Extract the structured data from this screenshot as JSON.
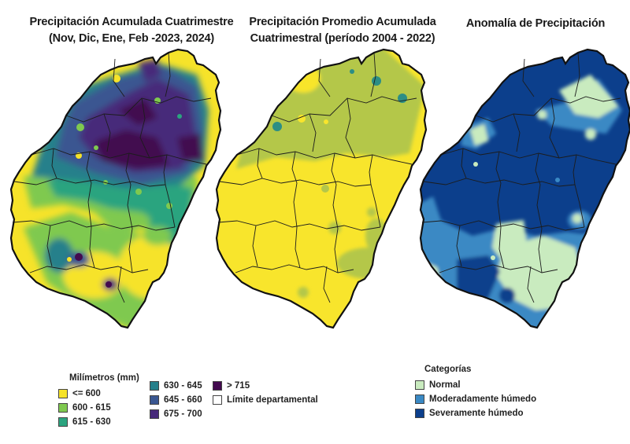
{
  "titles": {
    "panel1": "Precipitación Acumulada Cuatrimestre (Nov, Dic, Ene, Feb -2023, 2024)",
    "panel2": "Precipitación Promedio Acumulada Cuatrimestral (período 2004 - 2022)",
    "panel3": "Anomalía de Precipitación"
  },
  "legend_mm": {
    "title": "Milímetros (mm)",
    "items": [
      {
        "label": "<= 600",
        "color": "#f6e32a"
      },
      {
        "label": "600 - 615",
        "color": "#7fc94f"
      },
      {
        "label": "615 - 630",
        "color": "#2ba47f"
      },
      {
        "label": "630 - 645",
        "color": "#26808b"
      },
      {
        "label": "645 - 660",
        "color": "#3a5791"
      },
      {
        "label": "675 - 700",
        "color": "#47297a"
      },
      {
        "label": "> 715",
        "color": "#430a4f"
      },
      {
        "label": "Límite departamental",
        "color": "#ffffff"
      }
    ]
  },
  "legend_cat": {
    "title": "Categorías",
    "items": [
      {
        "label": "Normal",
        "color": "#c9ebbf"
      },
      {
        "label": "Moderadamente húmedo",
        "color": "#3a89c4"
      },
      {
        "label": "Severamente húmedo",
        "color": "#0c3f8c"
      }
    ]
  },
  "colors": {
    "panel2_yellow": "#f8e52c",
    "panel2_green": "#b4c74a",
    "panel2_teal": "#2c8e85",
    "outline": "#111111"
  }
}
